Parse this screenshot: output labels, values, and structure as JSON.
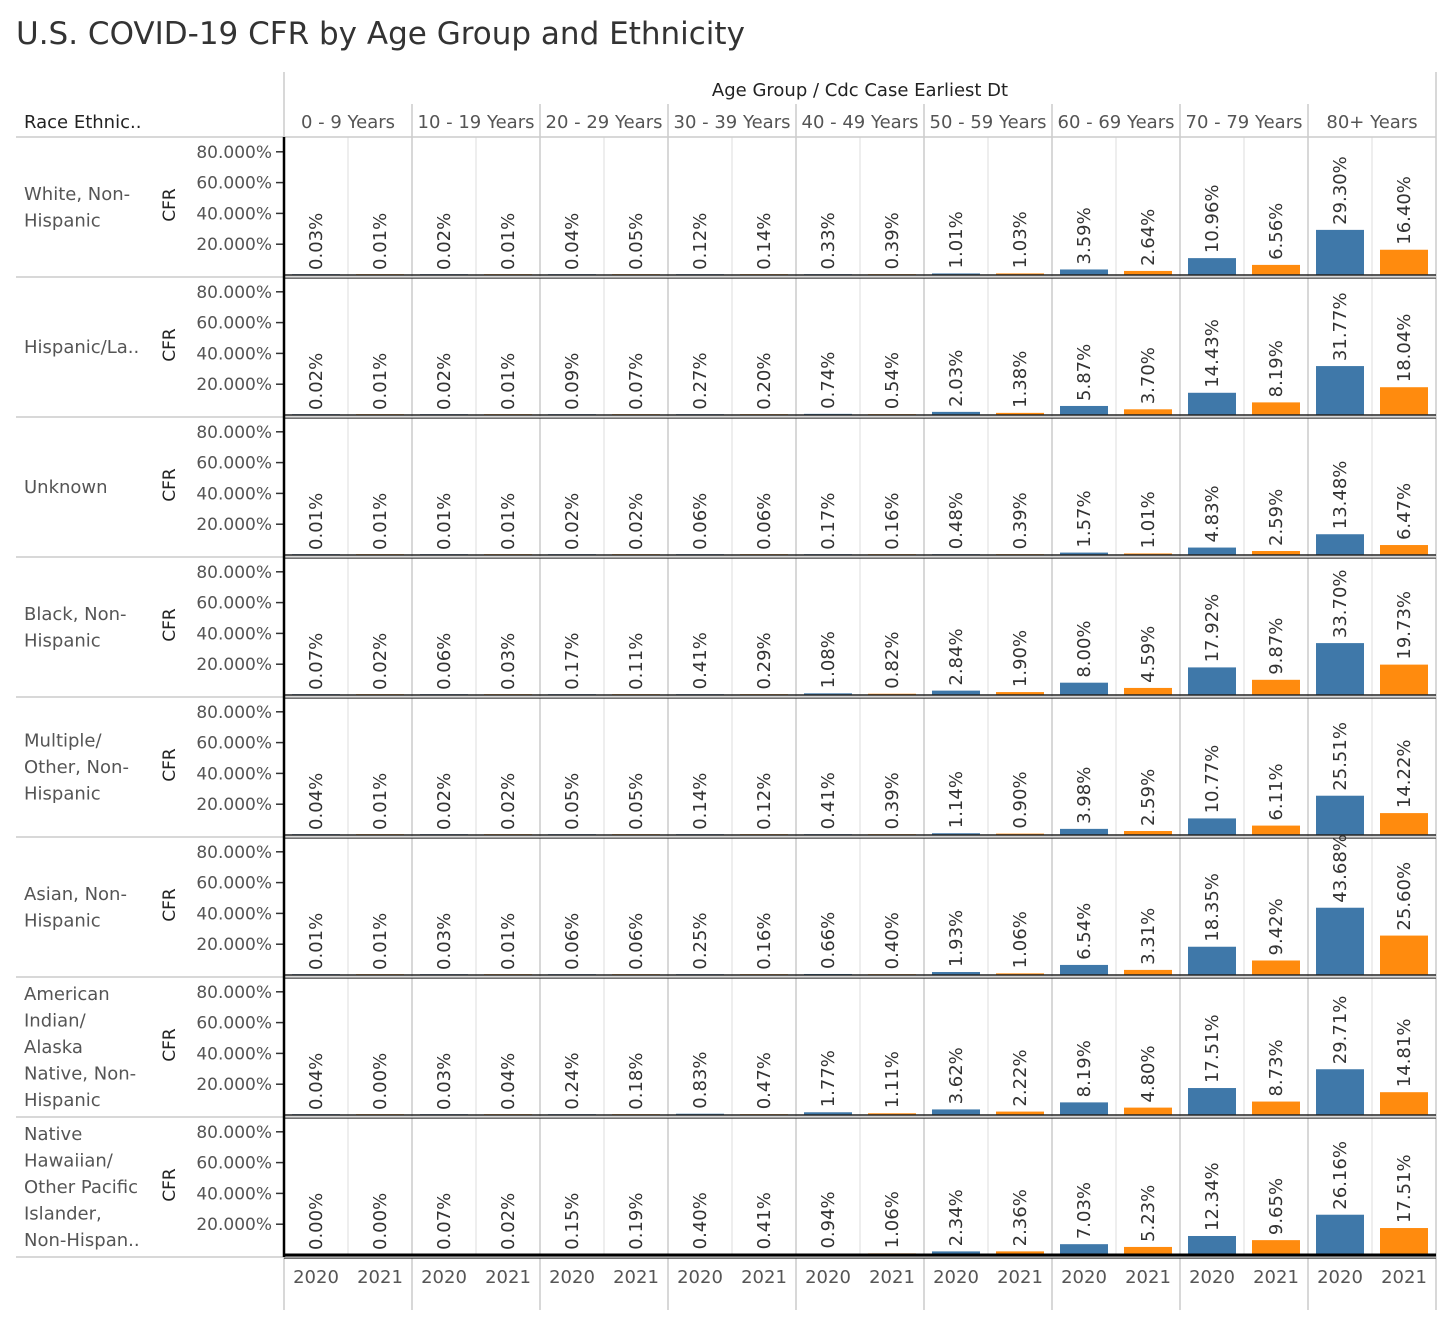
{
  "chart_data": {
    "type": "bar",
    "title": "U.S. COVID-19 CFR by Age Group and Ethnicity",
    "column_header": "Age Group  /  Cdc Case Earliest Dt",
    "row_header": "Race Ethnic..",
    "ylabel": "CFR",
    "ylim": [
      0,
      80
    ],
    "yticks": [
      "80.000%",
      "60.000%",
      "40.000%",
      "20.000%"
    ],
    "ytick_values": [
      80,
      60,
      40,
      20
    ],
    "age_groups": [
      "0 - 9 Years",
      "10 - 19 Years",
      "20 - 29 Years",
      "30 - 39 Years",
      "40 - 49 Years",
      "50 - 59 Years",
      "60 - 69 Years",
      "70 - 79 Years",
      "80+ Years"
    ],
    "years": [
      "2020",
      "2021"
    ],
    "colors": {
      "2020": "#3f78a9",
      "2021": "#ff8b0e"
    },
    "rows": [
      {
        "label": [
          "White, Non-",
          "Hispanic"
        ],
        "v2020": [
          0.03,
          0.02,
          0.04,
          0.12,
          0.33,
          1.01,
          3.59,
          10.96,
          29.3
        ],
        "v2021": [
          0.01,
          0.01,
          0.05,
          0.14,
          0.39,
          1.03,
          2.64,
          6.56,
          16.4
        ]
      },
      {
        "label": [
          "Hispanic/La.."
        ],
        "v2020": [
          0.02,
          0.02,
          0.09,
          0.27,
          0.74,
          2.03,
          5.87,
          14.43,
          31.77
        ],
        "v2021": [
          0.01,
          0.01,
          0.07,
          0.2,
          0.54,
          1.38,
          3.7,
          8.19,
          18.04
        ]
      },
      {
        "label": [
          "Unknown"
        ],
        "v2020": [
          0.01,
          0.01,
          0.02,
          0.06,
          0.17,
          0.48,
          1.57,
          4.83,
          13.48
        ],
        "v2021": [
          0.01,
          0.01,
          0.02,
          0.06,
          0.16,
          0.39,
          1.01,
          2.59,
          6.47
        ]
      },
      {
        "label": [
          "Black, Non-",
          "Hispanic"
        ],
        "v2020": [
          0.07,
          0.06,
          0.17,
          0.41,
          1.08,
          2.84,
          8.0,
          17.92,
          33.7
        ],
        "v2021": [
          0.02,
          0.03,
          0.11,
          0.29,
          0.82,
          1.9,
          4.59,
          9.87,
          19.73
        ]
      },
      {
        "label": [
          "Multiple/",
          "Other, Non-",
          "Hispanic"
        ],
        "v2020": [
          0.04,
          0.02,
          0.05,
          0.14,
          0.41,
          1.14,
          3.98,
          10.77,
          25.51
        ],
        "v2021": [
          0.01,
          0.02,
          0.05,
          0.12,
          0.39,
          0.9,
          2.59,
          6.11,
          14.22
        ]
      },
      {
        "label": [
          "Asian, Non-",
          "Hispanic"
        ],
        "v2020": [
          0.01,
          0.03,
          0.06,
          0.25,
          0.66,
          1.93,
          6.54,
          18.35,
          43.68
        ],
        "v2021": [
          0.01,
          0.01,
          0.06,
          0.16,
          0.4,
          1.06,
          3.31,
          9.42,
          25.6
        ]
      },
      {
        "label": [
          "American",
          "Indian/",
          "Alaska",
          "Native, Non-",
          "Hispanic"
        ],
        "v2020": [
          0.04,
          0.03,
          0.24,
          0.83,
          1.77,
          3.62,
          8.19,
          17.51,
          29.71
        ],
        "v2021": [
          0.0,
          0.04,
          0.18,
          0.47,
          1.11,
          2.22,
          4.8,
          8.73,
          14.81
        ]
      },
      {
        "label": [
          "Native",
          "Hawaiian/",
          "Other Pacific",
          "Islander,",
          "Non-Hispan.."
        ],
        "v2020": [
          0.0,
          0.07,
          0.15,
          0.4,
          0.94,
          2.34,
          7.03,
          12.34,
          26.16
        ],
        "v2021": [
          0.0,
          0.02,
          0.19,
          0.41,
          1.06,
          2.36,
          5.23,
          9.65,
          17.51
        ]
      }
    ]
  }
}
